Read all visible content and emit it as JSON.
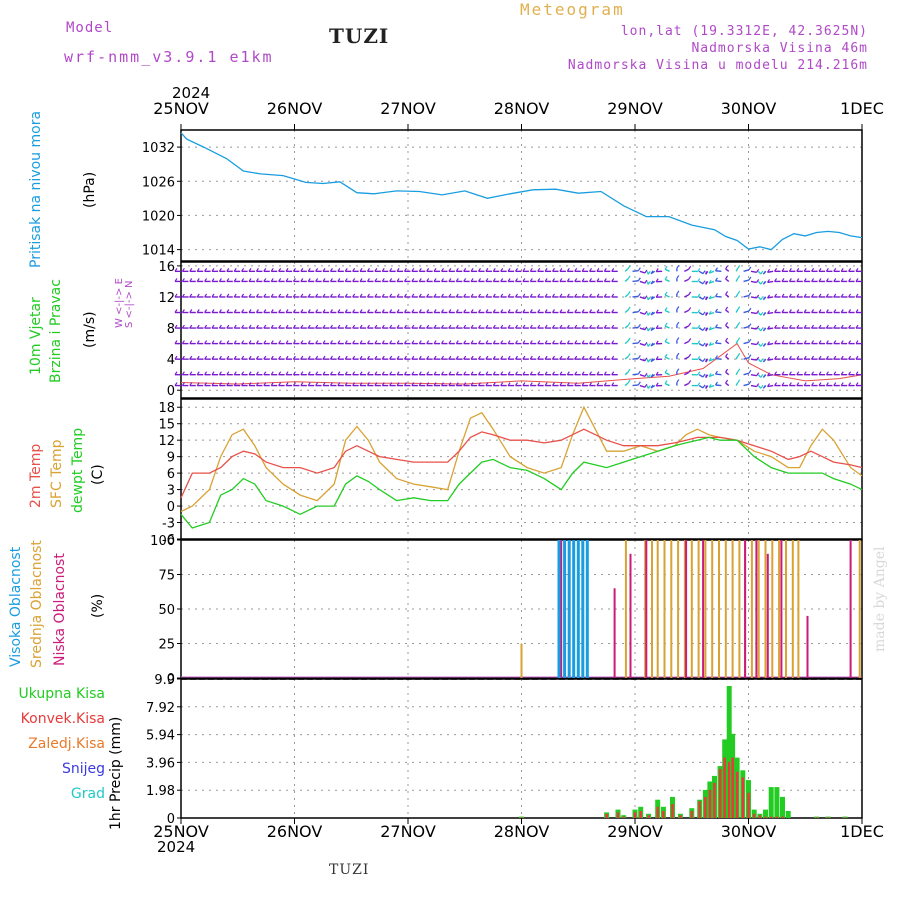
{
  "header": {
    "model_label": "Model",
    "model_name": "wrf-nmm_v3.9.1 e1km",
    "station": "TUZI",
    "meteogram": "Meteogram",
    "lonlat": "lon,lat (19.3312E, 42.3625N)",
    "elev": "Nadmorska Visina 46m",
    "elev_model": "Nadmorska Visina u modelu 214.216m",
    "year": "2024",
    "footer_station": "TUZI",
    "credit": "made by Angel"
  },
  "colors": {
    "pressure": "#1a9de0",
    "temp2m": "#e8504a",
    "sfc": "#d9a233",
    "dewpt": "#22cc22",
    "high_cloud": "#1a9de0",
    "mid_cloud": "#d9a233",
    "low_cloud": "#cc1a7a",
    "wind_barb": "#7a1ad0",
    "precip_total": "#22cc22",
    "precip_conv": "#e83a3a",
    "precip_strat": "#e87a2a",
    "snow": "#3a3ae0",
    "hail": "#22c8c8"
  },
  "panel_labels": {
    "pressure": [
      "Pritisak na nivou mora",
      "(hPa)"
    ],
    "wind": [
      "10m Vjetar",
      "Brzina i Pravac",
      "(m/s)"
    ],
    "wind_dir": [
      "W <-|-> E",
      "S <-|-> N"
    ],
    "temp": [
      "2m Temp",
      "SFC Temp",
      "dewpt Temp",
      "(C)"
    ],
    "cloud": [
      "Visoka Oblacnost",
      "Srednja Oblacnost",
      "Niska Oblacnost",
      "(%)"
    ],
    "precip_legend": [
      "Ukupna Kisa",
      "Konvek.Kisa",
      "Zaledj.Kisa",
      "Snijeg",
      "Grad"
    ],
    "precip_axis": "1hr Precip (mm)"
  },
  "chart_data": {
    "type": "line",
    "x_ticks": [
      "25NOV",
      "26NOV",
      "27NOV",
      "28NOV",
      "29NOV",
      "30NOV",
      "1DEC"
    ],
    "x_days": [
      0,
      1,
      2,
      3,
      4,
      5,
      6
    ],
    "pressure": {
      "ylim": [
        1012,
        1035
      ],
      "ytick_labels": [
        "1014",
        "1020",
        "1026",
        "1032"
      ],
      "ytick_values": [
        1014,
        1020,
        1026,
        1032
      ],
      "x": [
        0,
        0.05,
        0.2,
        0.4,
        0.55,
        0.7,
        0.9,
        1.1,
        1.25,
        1.4,
        1.55,
        1.7,
        1.9,
        2.1,
        2.3,
        2.5,
        2.7,
        2.9,
        3.1,
        3.3,
        3.5,
        3.7,
        3.9,
        4.1,
        4.3,
        4.5,
        4.7,
        4.8,
        4.9,
        5.0,
        5.1,
        5.2,
        5.3,
        5.4,
        5.5,
        5.6,
        5.7,
        5.8,
        5.9,
        6.0
      ],
      "y": [
        1034.5,
        1033.4,
        1032.0,
        1030.0,
        1027.8,
        1027.3,
        1027.0,
        1025.8,
        1025.6,
        1025.9,
        1024.0,
        1023.8,
        1024.3,
        1024.2,
        1023.6,
        1024.3,
        1023.0,
        1023.8,
        1024.5,
        1024.6,
        1023.9,
        1024.2,
        1021.7,
        1019.8,
        1019.8,
        1018.3,
        1017.5,
        1016.3,
        1015.6,
        1014.1,
        1014.5,
        1014.0,
        1015.8,
        1016.8,
        1016.4,
        1017.0,
        1017.2,
        1017.0,
        1016.4,
        1016.1
      ]
    },
    "wind": {
      "ylim": [
        -1,
        16.5
      ],
      "ytick_labels": [
        "0",
        "4",
        "8",
        "12",
        "16"
      ],
      "ytick_values": [
        0,
        4,
        8,
        12,
        16
      ],
      "speed_x": [
        0,
        0.5,
        1,
        1.5,
        2,
        2.5,
        3,
        3.5,
        4,
        4.3,
        4.6,
        4.9,
        5.0,
        5.2,
        5.5,
        5.8,
        6
      ],
      "speed_y": [
        1.0,
        0.8,
        1.1,
        0.9,
        0.9,
        0.8,
        1.2,
        0.9,
        1.5,
        1.8,
        2.8,
        6.0,
        3.5,
        2.0,
        1.2,
        1.5,
        2.0
      ]
    },
    "temperature": {
      "ylim": [
        -6,
        19.5
      ],
      "ytick_labels": [
        "-6",
        "-3",
        "0",
        "3",
        "6",
        "9",
        "12",
        "15",
        "18"
      ],
      "ytick_values": [
        -6,
        -3,
        0,
        3,
        6,
        9,
        12,
        15,
        18
      ],
      "x": [
        0,
        0.1,
        0.25,
        0.35,
        0.45,
        0.55,
        0.65,
        0.75,
        0.9,
        1.05,
        1.2,
        1.35,
        1.45,
        1.55,
        1.65,
        1.75,
        1.9,
        2.05,
        2.2,
        2.35,
        2.45,
        2.55,
        2.65,
        2.75,
        2.9,
        3.05,
        3.2,
        3.35,
        3.45,
        3.55,
        3.65,
        3.75,
        3.9,
        4.05,
        4.2,
        4.35,
        4.45,
        4.55,
        4.65,
        4.75,
        4.9,
        5.05,
        5.2,
        5.35,
        5.45,
        5.55,
        5.65,
        5.75,
        5.9,
        6.0
      ],
      "t2m": [
        1.5,
        6,
        6,
        7,
        9,
        10,
        9.5,
        8,
        7,
        7,
        6,
        7,
        10,
        11,
        10,
        9,
        8.5,
        8,
        8,
        8,
        10,
        12.5,
        13.5,
        13,
        12,
        12,
        11.5,
        12,
        13,
        14,
        13,
        12,
        11,
        11,
        11,
        11.5,
        12,
        12.5,
        12.5,
        12.5,
        12,
        11,
        10,
        8.5,
        9,
        10,
        9,
        8,
        7.5,
        7
      ],
      "sfc": [
        -1,
        0,
        3,
        9,
        13,
        14,
        11,
        7,
        4,
        2,
        1,
        4,
        12,
        14.5,
        12,
        8,
        5,
        4,
        3.5,
        3,
        10,
        16,
        17,
        14,
        9,
        7,
        6,
        7,
        13,
        18,
        14,
        10,
        10,
        11,
        10,
        11,
        13,
        14,
        13,
        12.5,
        12,
        10,
        9,
        7,
        7,
        11,
        14,
        12,
        7,
        5.5
      ],
      "dewpt": [
        -1.5,
        -4,
        -3,
        2,
        3,
        5,
        4,
        1,
        0,
        -1.5,
        0,
        0,
        4,
        5.5,
        4.5,
        3,
        1,
        1.5,
        1,
        1,
        4,
        6,
        8,
        8.5,
        7,
        6.5,
        5,
        3,
        6,
        8,
        7.5,
        7,
        8,
        9,
        10,
        11,
        11.5,
        12,
        12.5,
        12,
        12,
        9,
        7,
        6,
        6,
        6,
        6,
        5,
        4,
        3
      ]
    },
    "cloud": {
      "ylim": [
        0,
        100
      ],
      "ytick_labels": [
        "0",
        "25",
        "50",
        "75",
        "100"
      ],
      "ytick_values": [
        0,
        25,
        50,
        75,
        100
      ],
      "high_x": [
        3.33,
        3.38,
        3.42,
        3.46,
        3.5,
        3.54,
        3.58
      ],
      "mid_x": [
        3.0,
        3.92,
        4.09,
        4.15,
        4.2,
        4.26,
        4.32,
        4.38,
        4.44,
        4.5,
        4.56,
        4.62,
        4.68,
        4.74,
        4.8,
        4.86,
        4.92,
        4.97,
        5.03,
        5.09,
        5.15,
        5.21,
        5.27,
        5.33,
        5.39,
        5.44,
        5.98
      ],
      "mid_vals": [
        25,
        100,
        100,
        100,
        100,
        100,
        100,
        100,
        100,
        100,
        100,
        100,
        100,
        100,
        100,
        100,
        100,
        100,
        100,
        100,
        100,
        100,
        100,
        100,
        100,
        100,
        100
      ],
      "low_x": [
        3.35,
        3.82,
        3.96,
        4.1,
        4.45,
        4.6,
        4.97,
        5.07,
        5.17,
        5.29,
        5.52,
        5.9
      ],
      "low_vals": [
        100,
        65,
        90,
        100,
        100,
        100,
        100,
        100,
        90,
        100,
        45,
        100
      ]
    },
    "precip": {
      "ylim": [
        0,
        9.9
      ],
      "ytick_labels": [
        "0",
        "1.98",
        "3.96",
        "5.94",
        "7.92",
        "9.9"
      ],
      "ytick_values": [
        0,
        1.98,
        3.96,
        5.94,
        7.92,
        9.9
      ],
      "x": [
        3.0,
        3.75,
        3.85,
        3.9,
        4.0,
        4.05,
        4.12,
        4.2,
        4.25,
        4.33,
        4.4,
        4.5,
        4.57,
        4.62,
        4.66,
        4.7,
        4.75,
        4.79,
        4.83,
        4.86,
        4.9,
        4.95,
        5.0,
        5.05,
        5.1,
        5.15,
        5.2,
        5.25,
        5.3,
        5.35,
        5.6,
        5.7,
        5.85
      ],
      "total": [
        0.1,
        0.4,
        0.6,
        0.2,
        0.6,
        0.8,
        0.3,
        1.3,
        0.8,
        1.5,
        0.3,
        0.7,
        1.3,
        2.0,
        2.6,
        3.0,
        3.7,
        5.6,
        9.4,
        6.0,
        4.3,
        3.4,
        2.7,
        0.6,
        0.3,
        0.6,
        2.2,
        2.2,
        1.5,
        0.5,
        0.1,
        0.1,
        0.1
      ],
      "convective": [
        0.05,
        0.3,
        0.4,
        0.1,
        0.4,
        0.5,
        0.2,
        0.8,
        0.5,
        1.0,
        0.2,
        0.5,
        1.2,
        1.5,
        2.0,
        2.5,
        3.5,
        4.3,
        4.0,
        4.3,
        3.3,
        2.9,
        1.8,
        0.3,
        0.2,
        0.1,
        0.1,
        0.1,
        0.1,
        0.0,
        0.05,
        0.05,
        0.05
      ]
    }
  }
}
